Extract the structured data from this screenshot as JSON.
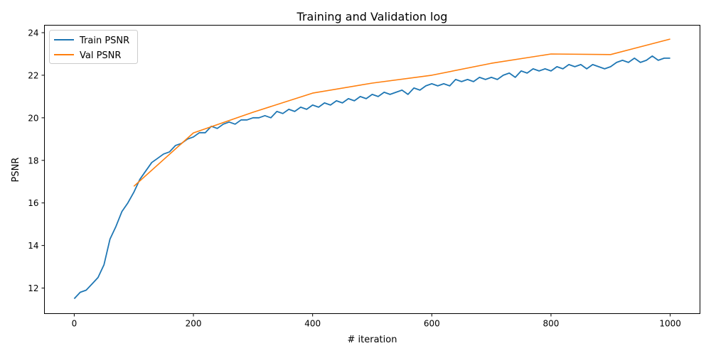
{
  "chart_data": {
    "type": "line",
    "title": "Training and Validation log",
    "xlabel": "# iteration",
    "ylabel": "PSNR",
    "xlim": [
      -50,
      1050
    ],
    "ylim": [
      10.8,
      24.35
    ],
    "xticks": [
      0,
      200,
      400,
      600,
      800,
      1000
    ],
    "yticks": [
      12,
      14,
      16,
      18,
      20,
      22,
      24
    ],
    "grid": false,
    "legend_position": "upper-left",
    "series": [
      {
        "name": "Train PSNR",
        "color": "#1f77b4",
        "x_start": 0,
        "x_step": 10,
        "values": [
          11.5,
          11.8,
          11.9,
          12.2,
          12.5,
          13.1,
          14.3,
          14.9,
          15.6,
          16.0,
          16.5,
          17.1,
          17.5,
          17.9,
          18.1,
          18.3,
          18.4,
          18.7,
          18.8,
          19.0,
          19.1,
          19.3,
          19.3,
          19.6,
          19.5,
          19.7,
          19.8,
          19.7,
          19.9,
          19.9,
          20.0,
          20.0,
          20.1,
          20.0,
          20.3,
          20.2,
          20.4,
          20.3,
          20.5,
          20.4,
          20.6,
          20.5,
          20.7,
          20.6,
          20.8,
          20.7,
          20.9,
          20.8,
          21.0,
          20.9,
          21.1,
          21.0,
          21.2,
          21.1,
          21.2,
          21.3,
          21.1,
          21.4,
          21.3,
          21.5,
          21.6,
          21.5,
          21.6,
          21.5,
          21.8,
          21.7,
          21.8,
          21.7,
          21.9,
          21.8,
          21.9,
          21.8,
          22.0,
          22.1,
          21.9,
          22.2,
          22.1,
          22.3,
          22.2,
          22.3,
          22.2,
          22.4,
          22.3,
          22.5,
          22.4,
          22.5,
          22.3,
          22.5,
          22.4,
          22.3,
          22.4,
          22.6,
          22.7,
          22.6,
          22.8,
          22.6,
          22.7,
          22.9,
          22.7,
          22.8,
          22.8
        ]
      },
      {
        "name": "Val PSNR",
        "color": "#ff7f0e",
        "x": [
          100,
          200,
          300,
          400,
          500,
          600,
          700,
          800,
          900,
          1000
        ],
        "values": [
          16.78,
          19.29,
          20.26,
          21.16,
          21.63,
          22.0,
          22.56,
          23.0,
          22.97,
          23.7
        ]
      }
    ]
  }
}
